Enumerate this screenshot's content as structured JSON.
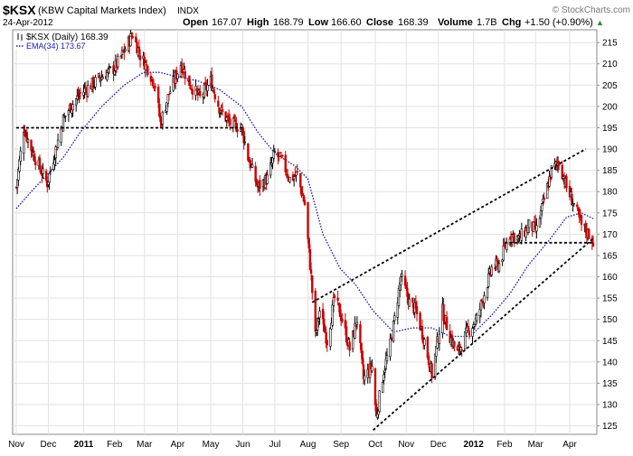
{
  "header": {
    "symbol": "$KSX",
    "name": "(KBW Capital Markets Index)",
    "exchange": "INDX",
    "date": "24-Apr-2012",
    "open_label": "Open",
    "open_value": "167.07",
    "high_label": "High",
    "high_value": "168.79",
    "low_label": "Low",
    "low_value": "166.60",
    "close_label": "Close",
    "close_value": "168.39",
    "volume_label": "Volume",
    "volume_value": "1.7B",
    "chg_label": "Chg",
    "chg_value": "+1.50 (+0.90%)",
    "chg_arrow": "▲",
    "watermark": "© StockCharts.com"
  },
  "legend": {
    "price_label": "$KSX (Daily) 168.39",
    "ema_label": "EMA(34) 173.67"
  },
  "colors": {
    "up": "#000000",
    "down": "#cc0000",
    "ema": "#1a1ab8",
    "grid": "#e2e2e2",
    "trendline": "#000000"
  },
  "chart_data": {
    "type": "candlestick",
    "y_axis": {
      "min": 123,
      "max": 218,
      "position": "right",
      "ticks": [
        125,
        130,
        135,
        140,
        145,
        150,
        155,
        160,
        165,
        170,
        175,
        180,
        185,
        190,
        195,
        200,
        205,
        210,
        215
      ]
    },
    "x_axis": {
      "start": "2010-11-01",
      "end": "2012-04-24",
      "labels": [
        {
          "label": "Nov",
          "date": "2010-11-01",
          "bold": false
        },
        {
          "label": "Dec",
          "date": "2010-12-01",
          "bold": false
        },
        {
          "label": "2011",
          "date": "2011-01-03",
          "bold": true
        },
        {
          "label": "Feb",
          "date": "2011-02-01",
          "bold": false
        },
        {
          "label": "Mar",
          "date": "2011-03-01",
          "bold": false
        },
        {
          "label": "Apr",
          "date": "2011-04-01",
          "bold": false
        },
        {
          "label": "May",
          "date": "2011-05-02",
          "bold": false
        },
        {
          "label": "Jun",
          "date": "2011-06-01",
          "bold": false
        },
        {
          "label": "Jul",
          "date": "2011-07-01",
          "bold": false
        },
        {
          "label": "Aug",
          "date": "2011-08-01",
          "bold": false
        },
        {
          "label": "Sep",
          "date": "2011-09-01",
          "bold": false
        },
        {
          "label": "Oct",
          "date": "2011-10-03",
          "bold": false
        },
        {
          "label": "Nov",
          "date": "2011-11-01",
          "bold": false
        },
        {
          "label": "Dec",
          "date": "2011-12-01",
          "bold": false
        },
        {
          "label": "2012",
          "date": "2012-01-03",
          "bold": true
        },
        {
          "label": "Feb",
          "date": "2012-02-01",
          "bold": false
        },
        {
          "label": "Mar",
          "date": "2012-03-01",
          "bold": false
        },
        {
          "label": "Apr",
          "date": "2012-04-02",
          "bold": false
        }
      ]
    },
    "grid": true,
    "price_path": [
      {
        "date": "2010-11-01",
        "close": 181
      },
      {
        "date": "2010-11-08",
        "close": 195
      },
      {
        "date": "2010-11-15",
        "close": 190
      },
      {
        "date": "2010-11-22",
        "close": 186
      },
      {
        "date": "2010-11-30",
        "close": 182
      },
      {
        "date": "2010-12-08",
        "close": 190
      },
      {
        "date": "2010-12-15",
        "close": 197
      },
      {
        "date": "2010-12-22",
        "close": 200
      },
      {
        "date": "2010-12-31",
        "close": 203
      },
      {
        "date": "2011-01-10",
        "close": 205
      },
      {
        "date": "2011-01-20",
        "close": 207
      },
      {
        "date": "2011-02-01",
        "close": 209
      },
      {
        "date": "2011-02-10",
        "close": 213
      },
      {
        "date": "2011-02-18",
        "close": 217
      },
      {
        "date": "2011-02-25",
        "close": 212
      },
      {
        "date": "2011-03-04",
        "close": 209
      },
      {
        "date": "2011-03-11",
        "close": 205
      },
      {
        "date": "2011-03-16",
        "close": 196
      },
      {
        "date": "2011-03-24",
        "close": 203
      },
      {
        "date": "2011-04-04",
        "close": 210
      },
      {
        "date": "2011-04-13",
        "close": 205
      },
      {
        "date": "2011-04-22",
        "close": 202
      },
      {
        "date": "2011-05-02",
        "close": 206
      },
      {
        "date": "2011-05-11",
        "close": 199
      },
      {
        "date": "2011-05-20",
        "close": 196
      },
      {
        "date": "2011-05-31",
        "close": 195
      },
      {
        "date": "2011-06-06",
        "close": 188
      },
      {
        "date": "2011-06-15",
        "close": 181
      },
      {
        "date": "2011-06-24",
        "close": 183
      },
      {
        "date": "2011-07-01",
        "close": 189
      },
      {
        "date": "2011-07-08",
        "close": 187
      },
      {
        "date": "2011-07-15",
        "close": 183
      },
      {
        "date": "2011-07-22",
        "close": 184
      },
      {
        "date": "2011-07-29",
        "close": 177
      },
      {
        "date": "2011-08-04",
        "close": 160
      },
      {
        "date": "2011-08-08",
        "close": 146
      },
      {
        "date": "2011-08-12",
        "close": 152
      },
      {
        "date": "2011-08-19",
        "close": 145
      },
      {
        "date": "2011-08-26",
        "close": 155
      },
      {
        "date": "2011-09-02",
        "close": 150
      },
      {
        "date": "2011-09-09",
        "close": 143
      },
      {
        "date": "2011-09-16",
        "close": 150
      },
      {
        "date": "2011-09-22",
        "close": 136
      },
      {
        "date": "2011-09-30",
        "close": 139
      },
      {
        "date": "2011-10-04",
        "close": 127
      },
      {
        "date": "2011-10-11",
        "close": 138
      },
      {
        "date": "2011-10-18",
        "close": 145
      },
      {
        "date": "2011-10-27",
        "close": 160
      },
      {
        "date": "2011-11-04",
        "close": 154
      },
      {
        "date": "2011-11-10",
        "close": 152
      },
      {
        "date": "2011-11-18",
        "close": 145
      },
      {
        "date": "2011-11-25",
        "close": 137
      },
      {
        "date": "2011-12-05",
        "close": 152
      },
      {
        "date": "2011-12-12",
        "close": 146
      },
      {
        "date": "2011-12-19",
        "close": 142
      },
      {
        "date": "2011-12-28",
        "close": 147
      },
      {
        "date": "2012-01-06",
        "close": 150
      },
      {
        "date": "2012-01-13",
        "close": 156
      },
      {
        "date": "2012-01-20",
        "close": 162
      },
      {
        "date": "2012-01-27",
        "close": 163
      },
      {
        "date": "2012-02-06",
        "close": 170
      },
      {
        "date": "2012-02-15",
        "close": 169
      },
      {
        "date": "2012-02-24",
        "close": 172
      },
      {
        "date": "2012-03-02",
        "close": 171
      },
      {
        "date": "2012-03-09",
        "close": 178
      },
      {
        "date": "2012-03-16",
        "close": 185
      },
      {
        "date": "2012-03-23",
        "close": 187
      },
      {
        "date": "2012-03-30",
        "close": 181
      },
      {
        "date": "2012-04-06",
        "close": 177
      },
      {
        "date": "2012-04-13",
        "close": 172
      },
      {
        "date": "2012-04-20",
        "close": 170
      },
      {
        "date": "2012-04-24",
        "close": 168.39
      }
    ],
    "ema_path": [
      {
        "date": "2010-11-01",
        "value": 176
      },
      {
        "date": "2010-11-15",
        "value": 180
      },
      {
        "date": "2010-11-30",
        "value": 184
      },
      {
        "date": "2010-12-15",
        "value": 188
      },
      {
        "date": "2010-12-31",
        "value": 194
      },
      {
        "date": "2011-01-20",
        "value": 200
      },
      {
        "date": "2011-02-10",
        "value": 205
      },
      {
        "date": "2011-02-28",
        "value": 208
      },
      {
        "date": "2011-03-15",
        "value": 208
      },
      {
        "date": "2011-04-01",
        "value": 207
      },
      {
        "date": "2011-04-20",
        "value": 206
      },
      {
        "date": "2011-05-10",
        "value": 204
      },
      {
        "date": "2011-05-31",
        "value": 200
      },
      {
        "date": "2011-06-15",
        "value": 194
      },
      {
        "date": "2011-07-01",
        "value": 189
      },
      {
        "date": "2011-07-20",
        "value": 186
      },
      {
        "date": "2011-08-01",
        "value": 183
      },
      {
        "date": "2011-08-15",
        "value": 170
      },
      {
        "date": "2011-08-31",
        "value": 162
      },
      {
        "date": "2011-09-15",
        "value": 158
      },
      {
        "date": "2011-10-01",
        "value": 152
      },
      {
        "date": "2011-10-20",
        "value": 147
      },
      {
        "date": "2011-11-07",
        "value": 148
      },
      {
        "date": "2011-11-25",
        "value": 148
      },
      {
        "date": "2011-12-12",
        "value": 146
      },
      {
        "date": "2011-12-31",
        "value": 146
      },
      {
        "date": "2012-01-20",
        "value": 151
      },
      {
        "date": "2012-02-06",
        "value": 156
      },
      {
        "date": "2012-02-24",
        "value": 163
      },
      {
        "date": "2012-03-12",
        "value": 168
      },
      {
        "date": "2012-03-30",
        "value": 174
      },
      {
        "date": "2012-04-13",
        "value": 175
      },
      {
        "date": "2012-04-24",
        "value": 173.67
      }
    ],
    "trendlines": [
      {
        "from": {
          "date": "2010-11-01",
          "value": 195
        },
        "to": {
          "date": "2011-06-01",
          "value": 195
        }
      },
      {
        "from": {
          "date": "2011-08-05",
          "value": 154
        },
        "to": {
          "date": "2012-04-17",
          "value": 190
        }
      },
      {
        "from": {
          "date": "2011-10-01",
          "value": 124
        },
        "to": {
          "date": "2012-04-24",
          "value": 169
        }
      },
      {
        "from": {
          "date": "2012-02-01",
          "value": 168
        },
        "to": {
          "date": "2012-04-24",
          "value": 168
        }
      }
    ]
  }
}
